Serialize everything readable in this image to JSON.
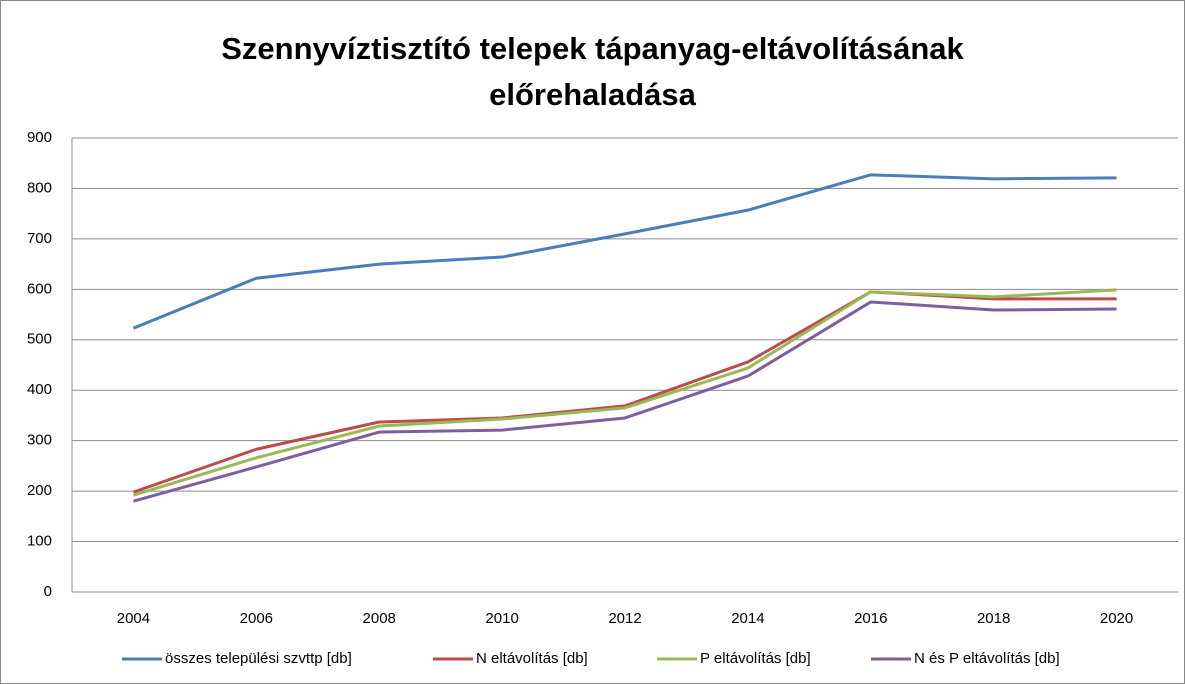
{
  "chart_data": {
    "type": "line",
    "title": "Szennyvíztisztító telepek tápanyag-eltávolításának előrehaladása",
    "categories": [
      "2004",
      "2006",
      "2008",
      "2010",
      "2012",
      "2014",
      "2016",
      "2018",
      "2020"
    ],
    "series": [
      {
        "name": "összes települési szvttp [db]",
        "color": "#4a7ebb",
        "values": [
          523,
          622,
          650,
          664,
          710,
          757,
          827,
          819,
          821
        ]
      },
      {
        "name": "N eltávolítás [db]",
        "color": "#be4b48",
        "values": [
          198,
          283,
          337,
          345,
          369,
          456,
          595,
          581,
          581
        ]
      },
      {
        "name": "P eltávolítás [db]",
        "color": "#98b954",
        "values": [
          192,
          266,
          329,
          343,
          365,
          444,
          595,
          585,
          599
        ]
      },
      {
        "name": "N és P eltávolítás [db]",
        "color": "#7d5fa0",
        "values": [
          180,
          248,
          317,
          321,
          345,
          428,
          575,
          559,
          561
        ]
      }
    ],
    "ylim": [
      0,
      900
    ],
    "yticks": [
      0,
      100,
      200,
      300,
      400,
      500,
      600,
      700,
      800,
      900
    ],
    "grid": true,
    "legend": "bottom"
  }
}
